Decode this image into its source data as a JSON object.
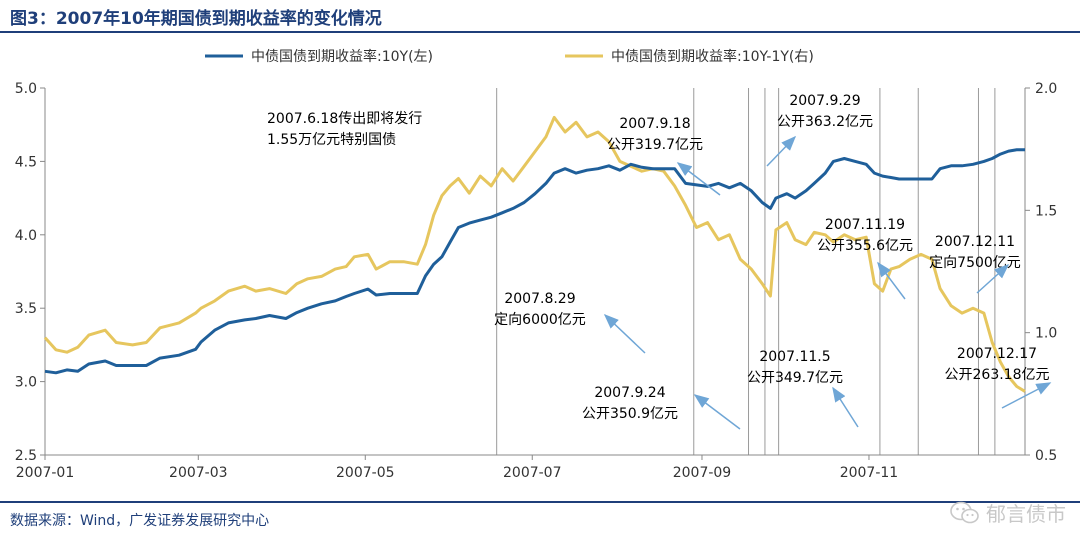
{
  "header": {
    "title": "图3：2007年10年期国债到期收益率的变化情况"
  },
  "footer": {
    "source": "数据来源：Wind，广发证券发展研究中心",
    "watermark": "郁言债市",
    "watermark_icon": "wechat-icon"
  },
  "colors": {
    "series_10y": "#1f5f9a",
    "series_spread": "#e6c65e",
    "arrow": "#6fa6d6",
    "axis": "#888888",
    "vline": "#9a9a9a",
    "title": "#1f3f7a"
  },
  "chart_data": {
    "type": "line",
    "x_start": "2007-01-04",
    "x_end": "2007-12-28",
    "x_ticks": [
      {
        "label": "2007-01",
        "date": "2007-01-04"
      },
      {
        "label": "2007-03",
        "date": "2007-03-01"
      },
      {
        "label": "2007-05",
        "date": "2007-05-01"
      },
      {
        "label": "2007-07",
        "date": "2007-07-01"
      },
      {
        "label": "2007-09",
        "date": "2007-09-01"
      },
      {
        "label": "2007-11",
        "date": "2007-11-01"
      }
    ],
    "y_left": {
      "min": 2.5,
      "max": 5.0,
      "ticks": [
        "2.5",
        "3.0",
        "3.5",
        "4.0",
        "4.5",
        "5.0"
      ]
    },
    "y_right": {
      "min": 0.5,
      "max": 2.0,
      "ticks": [
        "0.5",
        "1.0",
        "1.5",
        "2.0"
      ]
    },
    "legend": [
      {
        "name": "中债国债到期收益率:10Y(左)",
        "series": 0
      },
      {
        "name": "中债国债到期收益率:10Y-1Y(右)",
        "series": 1
      }
    ],
    "series": [
      {
        "name": "中债国债到期收益率:10Y(左)",
        "axis": "left",
        "points": [
          [
            "2007-01-04",
            3.07
          ],
          [
            "2007-01-08",
            3.06
          ],
          [
            "2007-01-12",
            3.08
          ],
          [
            "2007-01-16",
            3.07
          ],
          [
            "2007-01-20",
            3.12
          ],
          [
            "2007-01-26",
            3.14
          ],
          [
            "2007-01-30",
            3.11
          ],
          [
            "2007-02-05",
            3.11
          ],
          [
            "2007-02-10",
            3.11
          ],
          [
            "2007-02-15",
            3.16
          ],
          [
            "2007-02-22",
            3.18
          ],
          [
            "2007-02-28",
            3.22
          ],
          [
            "2007-03-02",
            3.27
          ],
          [
            "2007-03-07",
            3.35
          ],
          [
            "2007-03-12",
            3.4
          ],
          [
            "2007-03-18",
            3.42
          ],
          [
            "2007-03-22",
            3.43
          ],
          [
            "2007-03-27",
            3.45
          ],
          [
            "2007-04-02",
            3.43
          ],
          [
            "2007-04-06",
            3.47
          ],
          [
            "2007-04-10",
            3.5
          ],
          [
            "2007-04-15",
            3.53
          ],
          [
            "2007-04-20",
            3.55
          ],
          [
            "2007-04-24",
            3.58
          ],
          [
            "2007-04-27",
            3.6
          ],
          [
            "2007-05-02",
            3.63
          ],
          [
            "2007-05-05",
            3.59
          ],
          [
            "2007-05-10",
            3.6
          ],
          [
            "2007-05-15",
            3.6
          ],
          [
            "2007-05-20",
            3.6
          ],
          [
            "2007-05-23",
            3.72
          ],
          [
            "2007-05-26",
            3.8
          ],
          [
            "2007-05-29",
            3.85
          ],
          [
            "2007-06-01",
            3.95
          ],
          [
            "2007-06-04",
            4.05
          ],
          [
            "2007-06-08",
            4.08
          ],
          [
            "2007-06-12",
            4.1
          ],
          [
            "2007-06-16",
            4.12
          ],
          [
            "2007-06-20",
            4.15
          ],
          [
            "2007-06-24",
            4.18
          ],
          [
            "2007-06-28",
            4.22
          ],
          [
            "2007-07-02",
            4.28
          ],
          [
            "2007-07-06",
            4.35
          ],
          [
            "2007-07-09",
            4.42
          ],
          [
            "2007-07-13",
            4.45
          ],
          [
            "2007-07-17",
            4.42
          ],
          [
            "2007-07-21",
            4.44
          ],
          [
            "2007-07-25",
            4.45
          ],
          [
            "2007-07-29",
            4.47
          ],
          [
            "2007-08-02",
            4.44
          ],
          [
            "2007-08-06",
            4.48
          ],
          [
            "2007-08-10",
            4.46
          ],
          [
            "2007-08-14",
            4.45
          ],
          [
            "2007-08-18",
            4.45
          ],
          [
            "2007-08-22",
            4.45
          ],
          [
            "2007-08-26",
            4.35
          ],
          [
            "2007-08-30",
            4.34
          ],
          [
            "2007-09-03",
            4.33
          ],
          [
            "2007-09-07",
            4.35
          ],
          [
            "2007-09-11",
            4.32
          ],
          [
            "2007-09-15",
            4.35
          ],
          [
            "2007-09-19",
            4.3
          ],
          [
            "2007-09-23",
            4.22
          ],
          [
            "2007-09-26",
            4.18
          ],
          [
            "2007-09-28",
            4.25
          ],
          [
            "2007-10-02",
            4.28
          ],
          [
            "2007-10-05",
            4.25
          ],
          [
            "2007-10-09",
            4.3
          ],
          [
            "2007-10-12",
            4.35
          ],
          [
            "2007-10-16",
            4.42
          ],
          [
            "2007-10-19",
            4.5
          ],
          [
            "2007-10-23",
            4.52
          ],
          [
            "2007-10-27",
            4.5
          ],
          [
            "2007-10-31",
            4.48
          ],
          [
            "2007-11-03",
            4.42
          ],
          [
            "2007-11-06",
            4.4
          ],
          [
            "2007-11-09",
            4.39
          ],
          [
            "2007-11-12",
            4.38
          ],
          [
            "2007-11-16",
            4.38
          ],
          [
            "2007-11-20",
            4.38
          ],
          [
            "2007-11-24",
            4.38
          ],
          [
            "2007-11-27",
            4.45
          ],
          [
            "2007-12-01",
            4.47
          ],
          [
            "2007-12-05",
            4.47
          ],
          [
            "2007-12-09",
            4.48
          ],
          [
            "2007-12-13",
            4.5
          ],
          [
            "2007-12-16",
            4.52
          ],
          [
            "2007-12-19",
            4.55
          ],
          [
            "2007-12-22",
            4.57
          ],
          [
            "2007-12-25",
            4.58
          ],
          [
            "2007-12-28",
            4.58
          ]
        ]
      },
      {
        "name": "中债国债到期收益率:10Y-1Y(右)",
        "axis": "right",
        "points": [
          [
            "2007-01-04",
            0.98
          ],
          [
            "2007-01-08",
            0.93
          ],
          [
            "2007-01-12",
            0.92
          ],
          [
            "2007-01-16",
            0.94
          ],
          [
            "2007-01-20",
            0.99
          ],
          [
            "2007-01-26",
            1.01
          ],
          [
            "2007-01-30",
            0.96
          ],
          [
            "2007-02-05",
            0.95
          ],
          [
            "2007-02-10",
            0.96
          ],
          [
            "2007-02-15",
            1.02
          ],
          [
            "2007-02-22",
            1.04
          ],
          [
            "2007-02-28",
            1.08
          ],
          [
            "2007-03-02",
            1.1
          ],
          [
            "2007-03-07",
            1.13
          ],
          [
            "2007-03-12",
            1.17
          ],
          [
            "2007-03-18",
            1.19
          ],
          [
            "2007-03-22",
            1.17
          ],
          [
            "2007-03-27",
            1.18
          ],
          [
            "2007-04-02",
            1.16
          ],
          [
            "2007-04-06",
            1.2
          ],
          [
            "2007-04-10",
            1.22
          ],
          [
            "2007-04-15",
            1.23
          ],
          [
            "2007-04-20",
            1.26
          ],
          [
            "2007-04-24",
            1.27
          ],
          [
            "2007-04-27",
            1.31
          ],
          [
            "2007-05-02",
            1.32
          ],
          [
            "2007-05-05",
            1.26
          ],
          [
            "2007-05-10",
            1.29
          ],
          [
            "2007-05-15",
            1.29
          ],
          [
            "2007-05-20",
            1.28
          ],
          [
            "2007-05-23",
            1.36
          ],
          [
            "2007-05-26",
            1.48
          ],
          [
            "2007-05-29",
            1.56
          ],
          [
            "2007-06-01",
            1.6
          ],
          [
            "2007-06-04",
            1.63
          ],
          [
            "2007-06-08",
            1.57
          ],
          [
            "2007-06-12",
            1.64
          ],
          [
            "2007-06-16",
            1.6
          ],
          [
            "2007-06-20",
            1.67
          ],
          [
            "2007-06-24",
            1.62
          ],
          [
            "2007-06-28",
            1.68
          ],
          [
            "2007-07-02",
            1.74
          ],
          [
            "2007-07-06",
            1.8
          ],
          [
            "2007-07-09",
            1.88
          ],
          [
            "2007-07-13",
            1.82
          ],
          [
            "2007-07-17",
            1.86
          ],
          [
            "2007-07-21",
            1.8
          ],
          [
            "2007-07-25",
            1.82
          ],
          [
            "2007-07-29",
            1.78
          ],
          [
            "2007-08-02",
            1.7
          ],
          [
            "2007-08-06",
            1.68
          ],
          [
            "2007-08-10",
            1.66
          ],
          [
            "2007-08-14",
            1.67
          ],
          [
            "2007-08-18",
            1.66
          ],
          [
            "2007-08-22",
            1.6
          ],
          [
            "2007-08-26",
            1.52
          ],
          [
            "2007-08-30",
            1.43
          ],
          [
            "2007-09-03",
            1.45
          ],
          [
            "2007-09-07",
            1.38
          ],
          [
            "2007-09-11",
            1.4
          ],
          [
            "2007-09-15",
            1.3
          ],
          [
            "2007-09-19",
            1.26
          ],
          [
            "2007-09-23",
            1.2
          ],
          [
            "2007-09-26",
            1.15
          ],
          [
            "2007-09-28",
            1.42
          ],
          [
            "2007-10-02",
            1.45
          ],
          [
            "2007-10-05",
            1.38
          ],
          [
            "2007-10-09",
            1.36
          ],
          [
            "2007-10-12",
            1.41
          ],
          [
            "2007-10-16",
            1.4
          ],
          [
            "2007-10-19",
            1.37
          ],
          [
            "2007-10-23",
            1.4
          ],
          [
            "2007-10-27",
            1.38
          ],
          [
            "2007-10-31",
            1.39
          ],
          [
            "2007-11-03",
            1.2
          ],
          [
            "2007-11-06",
            1.17
          ],
          [
            "2007-11-09",
            1.26
          ],
          [
            "2007-11-12",
            1.27
          ],
          [
            "2007-11-16",
            1.3
          ],
          [
            "2007-11-20",
            1.32
          ],
          [
            "2007-11-24",
            1.3
          ],
          [
            "2007-11-27",
            1.18
          ],
          [
            "2007-12-01",
            1.11
          ],
          [
            "2007-12-05",
            1.08
          ],
          [
            "2007-12-09",
            1.1
          ],
          [
            "2007-12-13",
            1.08
          ],
          [
            "2007-12-16",
            0.96
          ],
          [
            "2007-12-19",
            0.88
          ],
          [
            "2007-12-22",
            0.82
          ],
          [
            "2007-12-25",
            0.78
          ],
          [
            "2007-12-28",
            0.76
          ]
        ]
      }
    ],
    "vlines": [
      "2007-06-18",
      "2007-08-29",
      "2007-09-18",
      "2007-09-24",
      "2007-09-29",
      "2007-11-05",
      "2007-11-19",
      "2007-12-11",
      "2007-12-17"
    ],
    "annotations": [
      {
        "lines": [
          "2007.6.18传出即将发行",
          "1.55万亿元特别国债"
        ],
        "anchor": "start"
      },
      {
        "lines": [
          "2007.8.29",
          "定向6000亿元"
        ],
        "anchor": "middle"
      },
      {
        "lines": [
          "2007.9.18",
          "公开319.7亿元"
        ],
        "anchor": "middle"
      },
      {
        "lines": [
          "2007.9.24",
          "公开350.9亿元"
        ],
        "anchor": "middle"
      },
      {
        "lines": [
          "2007.9.29",
          "公开363.2亿元"
        ],
        "anchor": "middle"
      },
      {
        "lines": [
          "2007.11.5",
          "公开349.7亿元"
        ],
        "anchor": "middle"
      },
      {
        "lines": [
          "2007.11.19",
          "公开355.6亿元"
        ],
        "anchor": "middle"
      },
      {
        "lines": [
          "2007.12.11",
          "定向7500亿元"
        ],
        "anchor": "middle"
      },
      {
        "lines": [
          "2007.12.17",
          "公开263.18亿元"
        ],
        "anchor": "middle"
      }
    ]
  }
}
